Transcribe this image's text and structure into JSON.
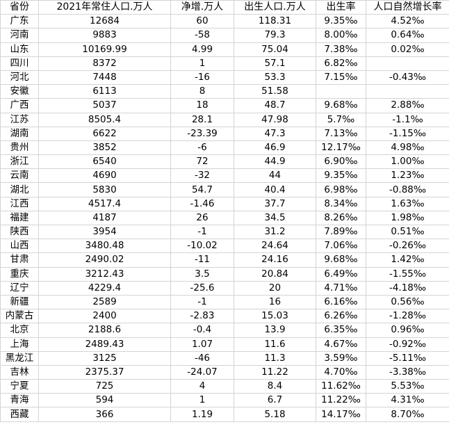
{
  "table": {
    "header": [
      "省份",
      "2021年常住人口.万人",
      "净增.万人",
      "出生人口.万人",
      "出生率",
      "人口自然增长率"
    ],
    "rows": [
      [
        "广东",
        "12684",
        "60",
        "118.31",
        "9.35‰",
        "4.52‰"
      ],
      [
        "河南",
        "9883",
        "-58",
        "79.3",
        "8.00‰",
        "0.64‰"
      ],
      [
        "山东",
        "10169.99",
        "4.99",
        "75.04",
        "7.38‰",
        "0.02‰"
      ],
      [
        "四川",
        "8372",
        "1",
        "57.1",
        "6.82‰",
        null
      ],
      [
        "河北",
        "7448",
        "-16",
        "53.3",
        "7.15‰",
        "-0.43‰"
      ],
      [
        "安徽",
        "6113",
        "8",
        "51.58",
        null,
        null
      ],
      [
        "广西",
        "5037",
        "18",
        "48.7",
        "9.68‰",
        "2.88‰"
      ],
      [
        "江苏",
        "8505.4",
        "28.1",
        "47.98",
        "5.7‰",
        "-1.1‰"
      ],
      [
        "湖南",
        "6622",
        "-23.39",
        "47.3",
        "7.13‰",
        "-1.15‰"
      ],
      [
        "贵州",
        "3852",
        "-6",
        "46.9",
        "12.17‰",
        "4.98‰"
      ],
      [
        "浙江",
        "6540",
        "72",
        "44.9",
        "6.90‰",
        "1.00‰"
      ],
      [
        "云南",
        "4690",
        "-32",
        "44",
        "9.35‰",
        "1.23‰"
      ],
      [
        "湖北",
        "5830",
        "54.7",
        "40.4",
        "6.98‰",
        "-0.88‰"
      ],
      [
        "江西",
        "4517.4",
        "-1.46",
        "37.7",
        "8.34‰",
        "1.63‰"
      ],
      [
        "福建",
        "4187",
        "26",
        "34.5",
        "8.26‰",
        "1.98‰"
      ],
      [
        "陕西",
        "3954",
        "-1",
        "31.2",
        "7.89‰",
        "0.51‰"
      ],
      [
        "山西",
        "3480.48",
        "-10.02",
        "24.64",
        "7.06‰",
        "-0.26‰"
      ],
      [
        "甘肃",
        "2490.02",
        "-11",
        "24.16",
        "9.68‰",
        "1.42‰"
      ],
      [
        "重庆",
        "3212.43",
        "3.5",
        "20.84",
        "6.49‰",
        "-1.55‰"
      ],
      [
        "辽宁",
        "4229.4",
        "-25.6",
        "20",
        "4.71‰",
        "-4.18‰"
      ],
      [
        "新疆",
        "2589",
        "-1",
        "16",
        "6.16‰",
        "0.56‰"
      ],
      [
        "内蒙古",
        "2400",
        "-2.83",
        "15.03",
        "6.26‰",
        "-1.28‰"
      ],
      [
        "北京",
        "2188.6",
        "-0.4",
        "13.9",
        "6.35‰",
        "0.96‰"
      ],
      [
        "上海",
        "2489.43",
        "1.07",
        "11.6",
        "4.67‰",
        "-0.92‰"
      ],
      [
        "黑龙江",
        "3125",
        "-46",
        "11.3",
        "3.59‰",
        "-5.11‰"
      ],
      [
        "吉林",
        "2375.37",
        "-24.07",
        "11.22",
        "4.70‰",
        "-3.38‰"
      ],
      [
        "宁夏",
        "725",
        "4",
        "8.4",
        "11.62‰",
        "5.53‰"
      ],
      [
        "青海",
        "594",
        "1",
        "6.7",
        "11.22‰",
        "4.31‰"
      ],
      [
        "西藏",
        "366",
        "1.19",
        "5.18",
        "14.17‰",
        "8.70‰"
      ]
    ]
  }
}
